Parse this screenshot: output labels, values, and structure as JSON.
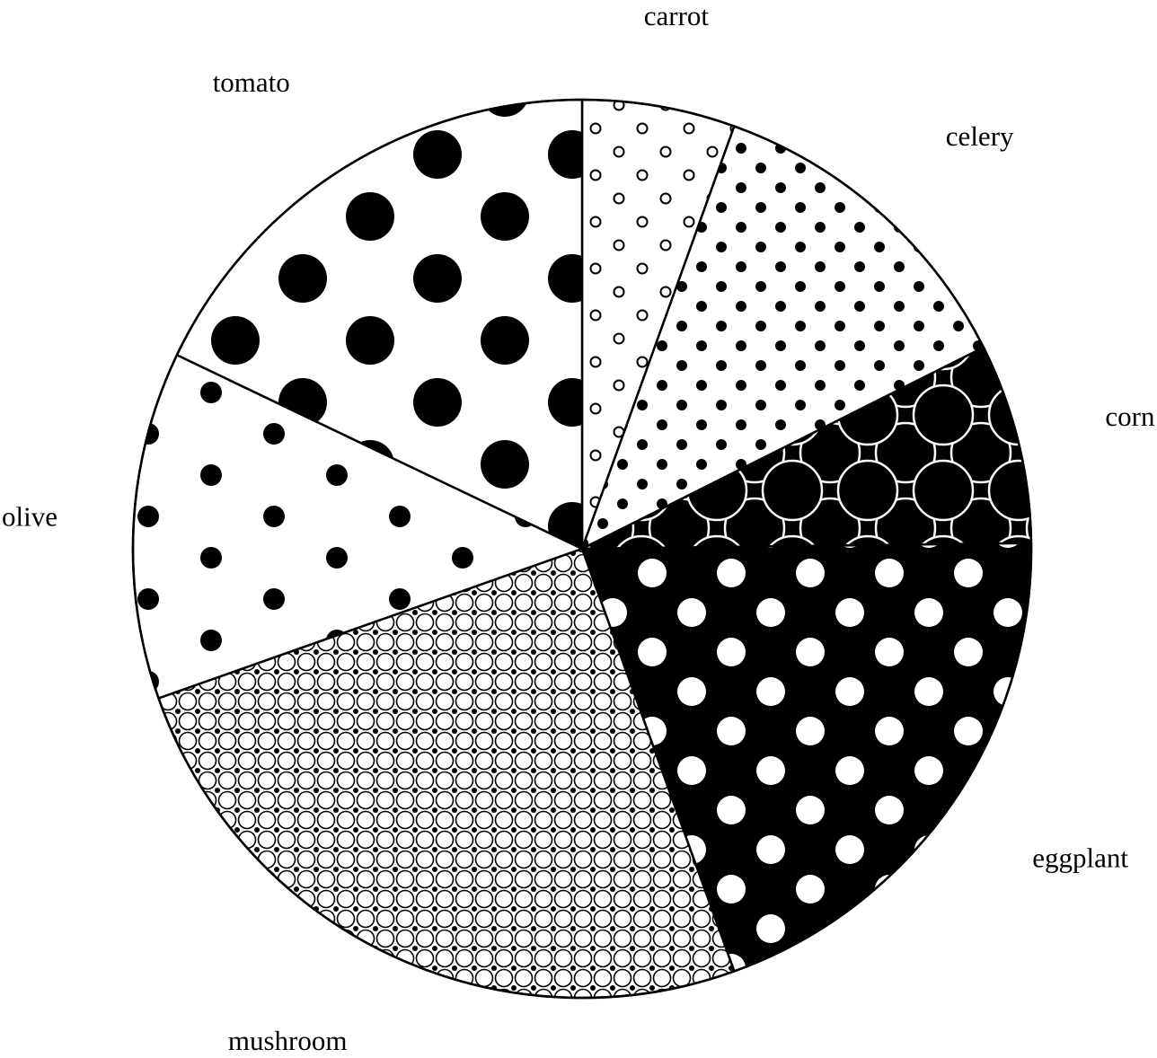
{
  "chart_data": {
    "type": "pie",
    "title": "",
    "start_angle_deg": 90,
    "direction": "clockwise",
    "legend": "none",
    "slices": [
      {
        "label": "carrot",
        "value": 5.5,
        "pattern": "small-open-circles"
      },
      {
        "label": "celery",
        "value": 12.1,
        "pattern": "small-dots"
      },
      {
        "label": "corn",
        "value": 7.2,
        "pattern": "overlapping-circles-on-black"
      },
      {
        "label": "eggplant",
        "value": 19.7,
        "pattern": "white-dots-on-black"
      },
      {
        "label": "mushroom",
        "value": 25.1,
        "pattern": "dense-circles-grid"
      },
      {
        "label": "olive",
        "value": 12.5,
        "pattern": "sparse-dots"
      },
      {
        "label": "tomato",
        "value": 17.9,
        "pattern": "large-dots"
      }
    ]
  }
}
